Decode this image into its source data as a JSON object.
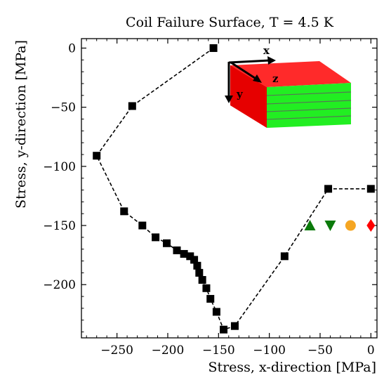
{
  "chart_data": {
    "type": "scatter",
    "title": "Coil Failure Surface, T = 4.5 K",
    "xlabel": "Stress, x-direction [MPa]",
    "ylabel": "Stress, y-direction [MPa]",
    "xlim": [
      -285,
      6
    ],
    "ylim": [
      -245,
      8
    ],
    "xticks": [
      -250,
      -200,
      -150,
      -100,
      -50,
      0
    ],
    "yticks": [
      0,
      -50,
      -100,
      -150,
      -200
    ],
    "xtick_labels": [
      "−250",
      "−200",
      "−150",
      "−100",
      "−50",
      "0"
    ],
    "ytick_labels": [
      "0",
      "−50",
      "−100",
      "−150",
      "−200"
    ],
    "grid": false,
    "series": [
      {
        "marker": "square",
        "color": "#000000",
        "line": "dashed",
        "x": [
          -155,
          -235,
          -270,
          -243,
          -225,
          -212,
          -201,
          -191,
          -184,
          -178,
          -174,
          -171,
          -169,
          -166,
          -162,
          -158,
          -152,
          -145,
          -134,
          -85,
          -42,
          0
        ],
        "y": [
          0,
          -49,
          -91,
          -138,
          -150,
          -160,
          -165,
          -171,
          -174,
          -176,
          -179,
          -184,
          -190,
          -196,
          -203,
          -212,
          -223,
          -238,
          -235,
          -176,
          -119,
          -119
        ]
      },
      {
        "marker": "triangle-up",
        "color": "#0a7a0a",
        "x": [
          -60
        ],
        "y": [
          -150
        ]
      },
      {
        "marker": "triangle-down",
        "color": "#0a7a0a",
        "x": [
          -40
        ],
        "y": [
          -150
        ]
      },
      {
        "marker": "circle",
        "color": "#f5a623",
        "x": [
          -20
        ],
        "y": [
          -150
        ]
      },
      {
        "marker": "diamond",
        "color": "#ff0000",
        "x": [
          0
        ],
        "y": [
          -150
        ]
      }
    ],
    "inset": {
      "axis_labels": [
        "x",
        "z",
        "y"
      ],
      "colors": {
        "front": "#e60000",
        "top": "#ff2a2a",
        "side": "#22ee22",
        "stripe": "#557755"
      }
    }
  }
}
